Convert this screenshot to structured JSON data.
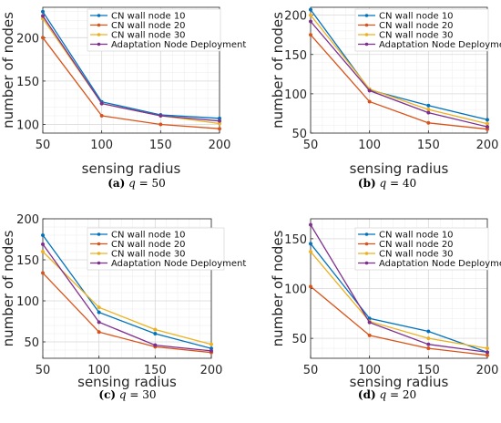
{
  "chart_data": [
    {
      "type": "line",
      "panel_id": "a",
      "x": [
        50,
        100,
        150,
        200
      ],
      "xlim": [
        50,
        200
      ],
      "ylim": [
        90,
        235
      ],
      "xticks": [
        50,
        100,
        150,
        200
      ],
      "yticks": [
        100,
        150,
        200
      ],
      "xlabel": "sensing radius",
      "ylabel": "number of nodes",
      "grid": true,
      "legend_position": "top-right",
      "caption": {
        "tag": "(a)",
        "variable": "q",
        "rest": " = 50"
      },
      "series": [
        {
          "name": "CN wall node 10",
          "color": "#0072BD",
          "values": [
            230,
            126,
            111,
            107
          ]
        },
        {
          "name": "CN wall node 20",
          "color": "#D95319",
          "values": [
            200,
            110,
            100,
            95
          ]
        },
        {
          "name": "CN wall node 30",
          "color": "#EDB120",
          "values": [
            222,
            124,
            110,
            101
          ]
        },
        {
          "name": "Adaptation Node Deployment",
          "color": "#7E2F8E",
          "values": [
            225,
            124,
            110,
            104
          ]
        }
      ]
    },
    {
      "type": "line",
      "panel_id": "b",
      "x": [
        50,
        100,
        150,
        200
      ],
      "xlim": [
        50,
        200
      ],
      "ylim": [
        50,
        210
      ],
      "xticks": [
        50,
        100,
        150,
        200
      ],
      "yticks": [
        50,
        100,
        150,
        200
      ],
      "xlabel": "sensing radius",
      "ylabel": "number of nodes",
      "grid": true,
      "legend_position": "top-right",
      "caption": {
        "tag": "(b)",
        "variable": "q",
        "rest": " = 40"
      },
      "series": [
        {
          "name": "CN wall node 10",
          "color": "#0072BD",
          "values": [
            207,
            105,
            85,
            67
          ]
        },
        {
          "name": "CN wall node 20",
          "color": "#D95319",
          "values": [
            175,
            90,
            63,
            55
          ]
        },
        {
          "name": "CN wall node 30",
          "color": "#EDB120",
          "values": [
            200,
            106,
            80,
            62
          ]
        },
        {
          "name": "Adaptation Node Deployment",
          "color": "#7E2F8E",
          "values": [
            192,
            104,
            76,
            58
          ]
        }
      ]
    },
    {
      "type": "line",
      "panel_id": "c",
      "x": [
        50,
        100,
        150,
        200
      ],
      "xlim": [
        50,
        200
      ],
      "ylim": [
        30,
        200
      ],
      "xticks": [
        50,
        100,
        150,
        200
      ],
      "yticks": [
        50,
        100,
        150,
        200
      ],
      "xlabel": "sensing radius",
      "ylabel": "number of nodes",
      "grid": true,
      "legend_position": "top-right",
      "caption": {
        "tag": "(c)",
        "variable": "q",
        "rest": " = 30"
      },
      "series": [
        {
          "name": "CN wall node 10",
          "color": "#0072BD",
          "values": [
            180,
            86,
            60,
            42
          ]
        },
        {
          "name": "CN wall node 20",
          "color": "#D95319",
          "values": [
            134,
            62,
            44,
            37
          ]
        },
        {
          "name": "CN wall node 30",
          "color": "#EDB120",
          "values": [
            160,
            92,
            65,
            47
          ]
        },
        {
          "name": "Adaptation Node Deployment",
          "color": "#7E2F8E",
          "values": [
            169,
            74,
            46,
            39
          ]
        }
      ]
    },
    {
      "type": "line",
      "panel_id": "d",
      "x": [
        50,
        100,
        150,
        200
      ],
      "xlim": [
        50,
        200
      ],
      "ylim": [
        30,
        170
      ],
      "xticks": [
        50,
        100,
        150,
        200
      ],
      "yticks": [
        50,
        100,
        150
      ],
      "xlabel": "sensing radius",
      "ylabel": "number of nodes",
      "grid": true,
      "legend_position": "top-right",
      "caption": {
        "tag": "(d)",
        "variable": "q",
        "rest": " = 20"
      },
      "series": [
        {
          "name": "CN wall node 10",
          "color": "#0072BD",
          "values": [
            145,
            70,
            57,
            36
          ]
        },
        {
          "name": "CN wall node 20",
          "color": "#D95319",
          "values": [
            102,
            53,
            40,
            33
          ]
        },
        {
          "name": "CN wall node 30",
          "color": "#EDB120",
          "values": [
            137,
            67,
            50,
            40
          ]
        },
        {
          "name": "Adaptation Node Deployment",
          "color": "#7E2F8E",
          "values": [
            164,
            66,
            44,
            36
          ]
        }
      ]
    }
  ]
}
